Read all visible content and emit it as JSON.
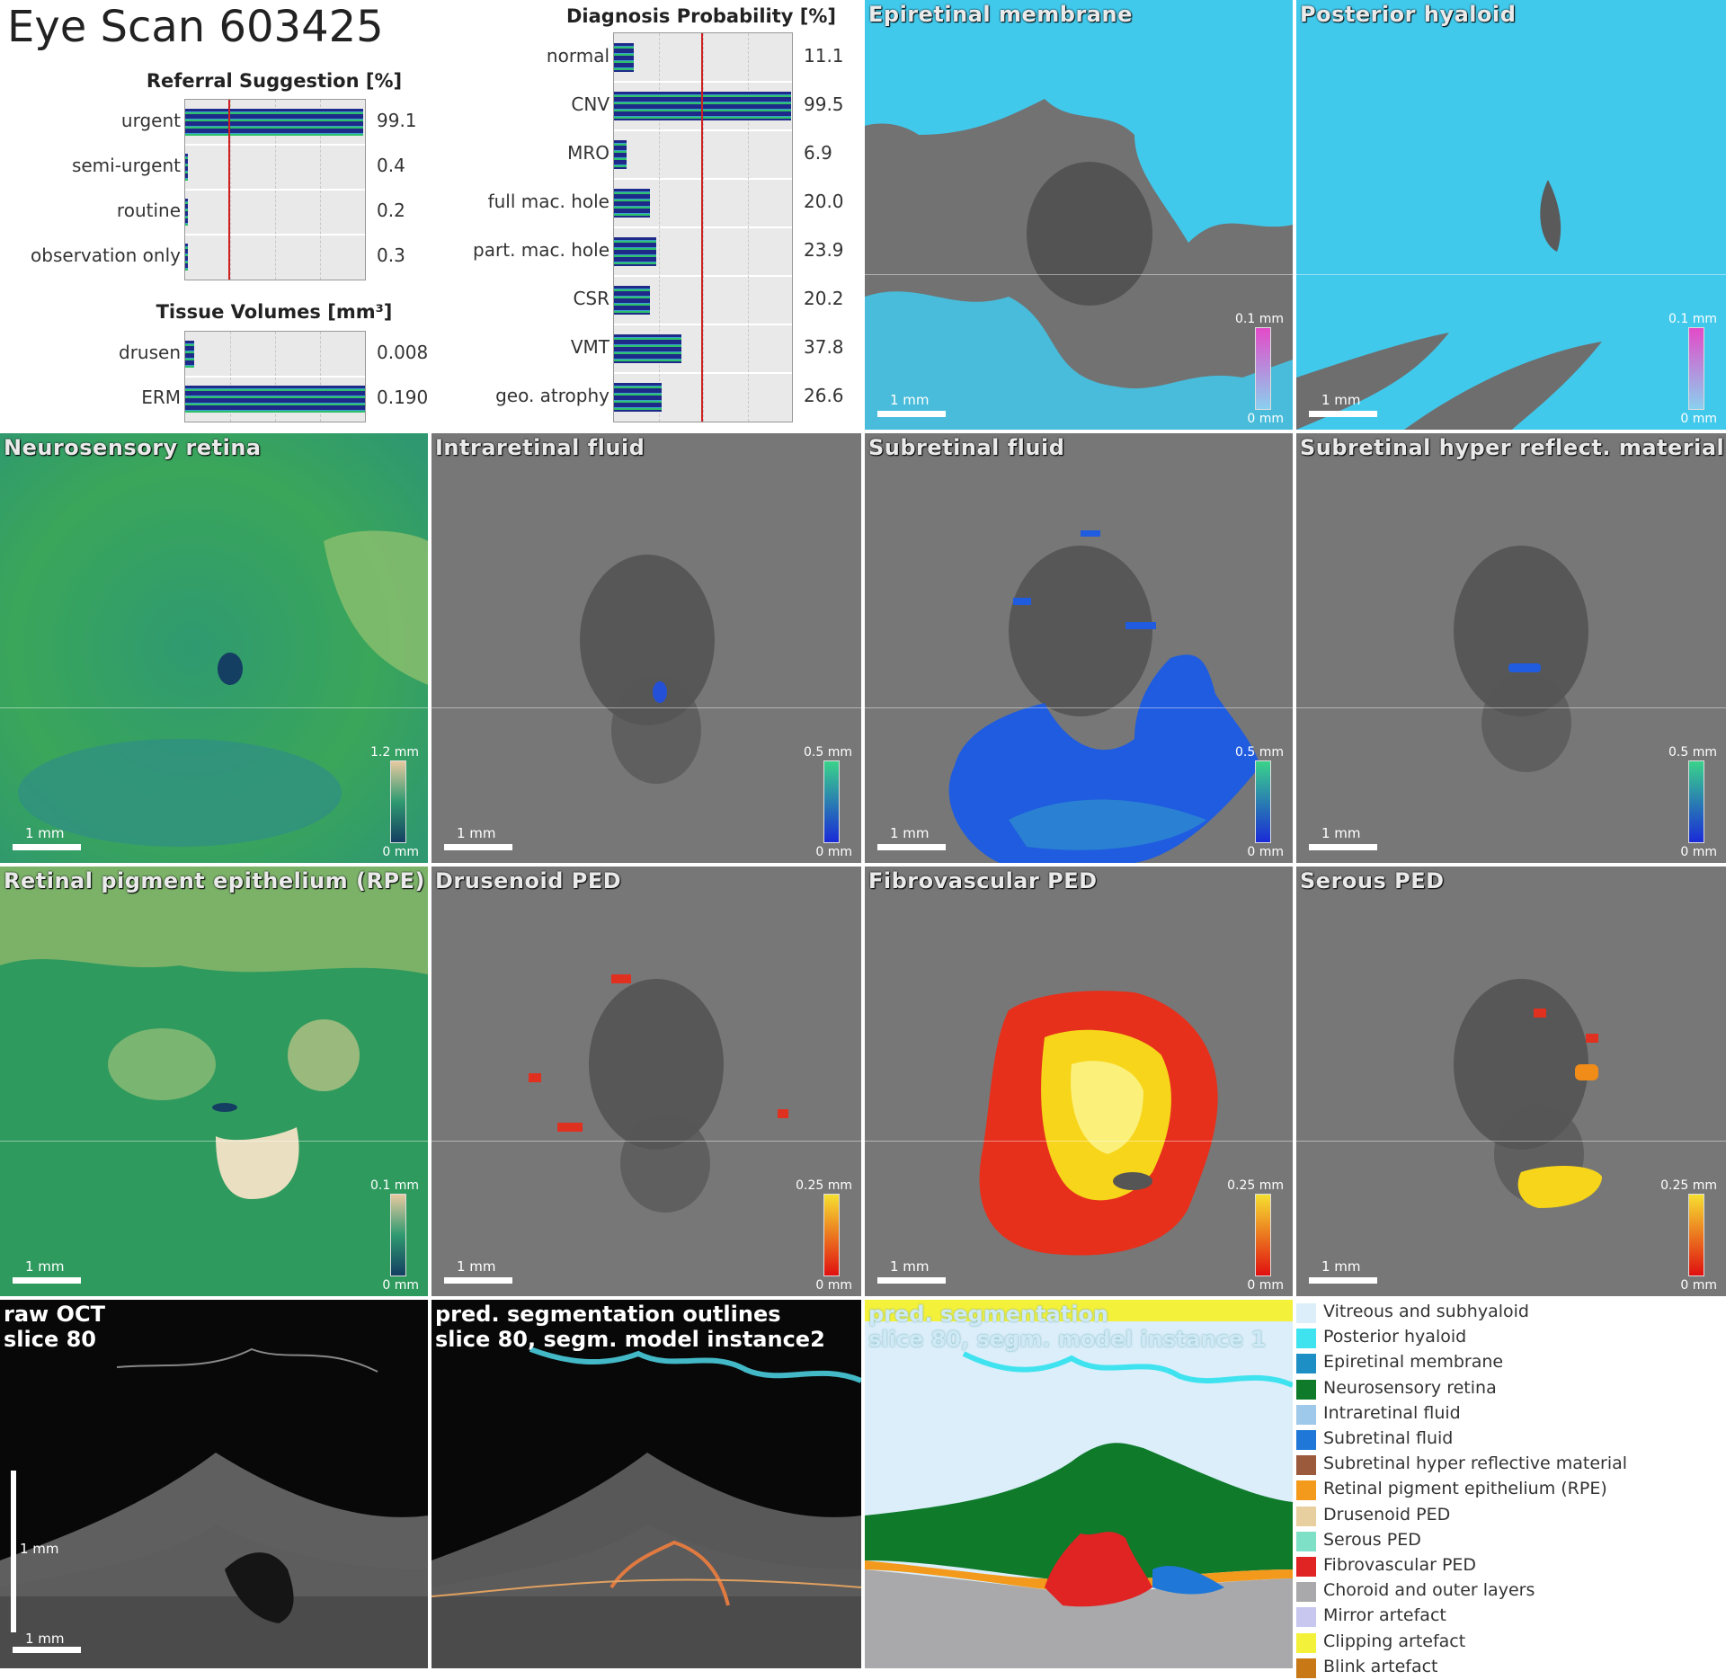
{
  "title": "Eye Scan 603425",
  "referral": {
    "title": "Referral Suggestion [%]",
    "items": [
      {
        "label": "urgent",
        "value": "99.1",
        "frac": 0.991
      },
      {
        "label": "semi-urgent",
        "value": "0.4",
        "frac": 0.004
      },
      {
        "label": "routine",
        "value": "0.2",
        "frac": 0.002
      },
      {
        "label": "observation only",
        "value": "0.3",
        "frac": 0.003
      }
    ]
  },
  "tissue": {
    "title": "Tissue Volumes [mm³]",
    "items": [
      {
        "label": "drusen",
        "value": "0.008",
        "frac": 0.05
      },
      {
        "label": "ERM",
        "value": "0.190",
        "frac": 1.0
      }
    ]
  },
  "diagnosis": {
    "title": "Diagnosis Probability [%]",
    "items": [
      {
        "label": "normal",
        "value": "11.1",
        "frac": 0.111
      },
      {
        "label": "CNV",
        "value": "99.5",
        "frac": 0.995
      },
      {
        "label": "MRO",
        "value": "6.9",
        "frac": 0.069
      },
      {
        "label": "full mac. hole",
        "value": "20.0",
        "frac": 0.2
      },
      {
        "label": "part. mac. hole",
        "value": "23.9",
        "frac": 0.239
      },
      {
        "label": "CSR",
        "value": "20.2",
        "frac": 0.202
      },
      {
        "label": "VMT",
        "value": "37.8",
        "frac": 0.378
      },
      {
        "label": "geo. atrophy",
        "value": "26.6",
        "frac": 0.266
      }
    ]
  },
  "panels": {
    "epiretinal": {
      "label": "Epiretinal membrane",
      "scale": "1 mm",
      "cmax": "0.1 mm",
      "cmin": "0 mm"
    },
    "posterior": {
      "label": "Posterior hyaloid",
      "scale": "1 mm",
      "cmax": "0.1 mm",
      "cmin": "0 mm"
    },
    "neuro": {
      "label": "Neurosensory retina",
      "scale": "1 mm",
      "cmax": "1.2 mm",
      "cmin": "0 mm"
    },
    "intraretinal": {
      "label": "Intraretinal fluid",
      "scale": "1 mm",
      "cmax": "0.5 mm",
      "cmin": "0 mm"
    },
    "subretinal": {
      "label": "Subretinal fluid",
      "scale": "1 mm",
      "cmax": "0.5 mm",
      "cmin": "0 mm"
    },
    "shrm": {
      "label": "Subretinal hyper reflect. material",
      "scale": "1 mm",
      "cmax": "0.5 mm",
      "cmin": "0 mm"
    },
    "rpe": {
      "label": "Retinal pigment epithelium (RPE)",
      "scale": "1 mm",
      "cmax": "0.1 mm",
      "cmin": "0 mm"
    },
    "drusenoid": {
      "label": "Drusenoid PED",
      "scale": "1 mm",
      "cmax": "0.25 mm",
      "cmin": "0 mm"
    },
    "fibrovascular": {
      "label": "Fibrovascular PED",
      "scale": "1 mm",
      "cmax": "0.25 mm",
      "cmin": "0 mm"
    },
    "serous": {
      "label": "Serous PED",
      "scale": "1 mm",
      "cmax": "0.25 mm",
      "cmin": "0 mm"
    }
  },
  "oct": {
    "raw_line1": "raw OCT",
    "raw_line2": "slice 80",
    "raw_vscale": "1 mm",
    "raw_hscale": "1 mm",
    "outline_line1": "pred. segmentation outlines",
    "outline_line2": "slice 80, segm. model instance2",
    "seg_line1": "pred. segmentation",
    "seg_line2": "slice 80, segm. model instance 1"
  },
  "legend": [
    {
      "label": "Vitreous and subhyaloid",
      "color": "#dbeefa"
    },
    {
      "label": "Posterior hyaloid",
      "color": "#3fe3ef"
    },
    {
      "label": "Epiretinal membrane",
      "color": "#1d8fc4"
    },
    {
      "label": "Neurosensory retina",
      "color": "#0e7a2a"
    },
    {
      "label": "Intraretinal fluid",
      "color": "#9fc9ea"
    },
    {
      "label": "Subretinal fluid",
      "color": "#1f78d8"
    },
    {
      "label": "Subretinal hyper reflective material",
      "color": "#9b5a3c"
    },
    {
      "label": "Retinal pigment epithelium (RPE)",
      "color": "#f39a1c"
    },
    {
      "label": "Drusenoid PED",
      "color": "#e8cfa0"
    },
    {
      "label": "Serous PED",
      "color": "#7fe0c8"
    },
    {
      "label": "Fibrovascular PED",
      "color": "#e02424"
    },
    {
      "label": "Choroid and outer layers",
      "color": "#a9a9ab"
    },
    {
      "label": "Mirror artefact",
      "color": "#c7c7ef"
    },
    {
      "label": "Clipping artefact",
      "color": "#f4f13a"
    },
    {
      "label": "Blink artefact",
      "color": "#c87814"
    }
  ]
}
